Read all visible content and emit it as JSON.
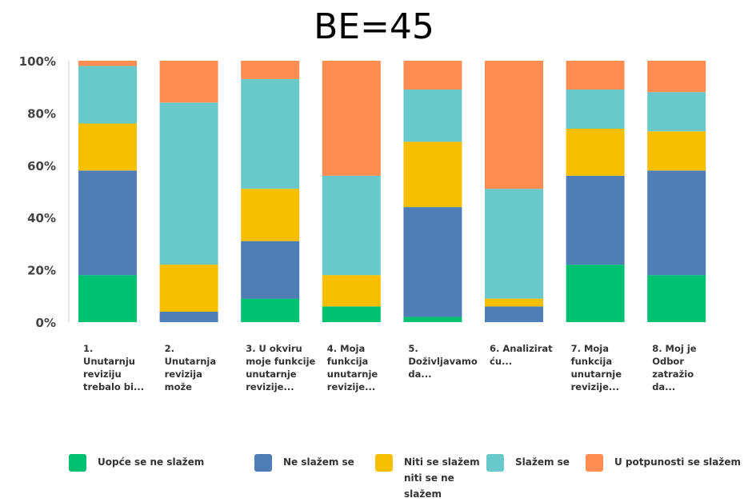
{
  "title": "BE=45",
  "chart_data": {
    "type": "bar",
    "stacked": true,
    "ylim": [
      0,
      100
    ],
    "yticks": [
      "0%",
      "20%",
      "40%",
      "60%",
      "80%",
      "100%"
    ],
    "categories": [
      "1. Unutarnju reviziju trebalo bi...",
      "2. Unutarnja revizija može",
      "3. U okviru moje funkcije unutarnje revizije...",
      "4. Moja funkcija unutarnje revizije...",
      "5. Doživljavamo da...",
      "6. Analizirat ću...",
      "7. Moja funkcija unutarnje revizije...",
      "8. Moj je Odbor zatražio da..."
    ],
    "category_lines": [
      [
        "1.",
        "Unutarnju",
        "reviziju",
        "trebalo bi..."
      ],
      [
        "2.",
        "Unutarnja",
        "revizija",
        "može"
      ],
      [
        "3. U okviru",
        "moje funkcije",
        "unutarnje",
        "revizije..."
      ],
      [
        "4. Moja",
        "funkcija",
        "unutarnje",
        "revizije..."
      ],
      [
        "5.",
        "Doživljavamo",
        "da..."
      ],
      [
        "6. Analizirat",
        "ću..."
      ],
      [
        "7. Moja",
        "funkcija",
        "unutarnje",
        "revizije..."
      ],
      [
        "8. Moj je",
        "Odbor",
        "zatražio",
        "da..."
      ]
    ],
    "series": [
      {
        "name": "Uopće se ne slažem",
        "color": "#00c172",
        "values": [
          18,
          0,
          9,
          6,
          2,
          0,
          22,
          18
        ]
      },
      {
        "name": "Ne slažem se",
        "color": "#4f7db6",
        "values": [
          40,
          4,
          22,
          0,
          42,
          6,
          34,
          40
        ]
      },
      {
        "name": "Niti se slažem niti se ne slažem",
        "color": "#f8bf00",
        "values": [
          18,
          18,
          20,
          12,
          25,
          3,
          18,
          15
        ]
      },
      {
        "name": "Slažem se",
        "color": "#68c8ca",
        "values": [
          22,
          62,
          42,
          38,
          20,
          42,
          15,
          15
        ]
      },
      {
        "name": "U potpunosti se slažem",
        "color": "#ff8c52",
        "values": [
          2,
          16,
          7,
          44,
          11,
          49,
          11,
          12
        ]
      }
    ],
    "legend_lines": [
      [
        "Uopće se ne slažem"
      ],
      [
        "Ne slažem se"
      ],
      [
        "Niti se slažem",
        "niti se ne",
        "slažem"
      ],
      [
        "Slažem se"
      ],
      [
        "U potpunosti se slažem"
      ]
    ],
    "grid": false,
    "legend_position": "bottom"
  }
}
